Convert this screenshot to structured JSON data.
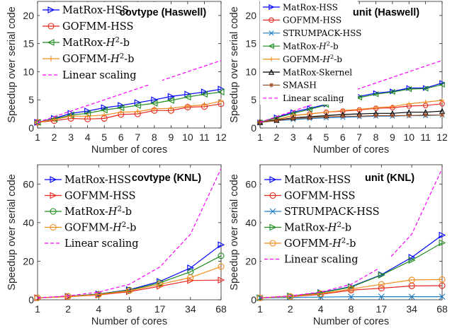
{
  "chart_data": [
    {
      "type": "line",
      "title": "covtype (Haswell)",
      "xlabel": "Number of cores",
      "ylabel": "Speedup over serial code",
      "x": [
        1,
        2,
        3,
        4,
        5,
        6,
        7,
        8,
        9,
        10,
        11,
        12
      ],
      "x_ticks": [
        "1",
        "2",
        "3",
        "4",
        "5",
        "6",
        "7",
        "8",
        "9",
        "10",
        "11",
        "12"
      ],
      "y_ticks": [
        0,
        5,
        10,
        15,
        20
      ],
      "ylim": [
        0,
        22.5
      ],
      "x_scale": "linear",
      "legend_position": "top-left",
      "series": [
        {
          "name": "MatRox-HSS",
          "color": "#0000ff",
          "marker": "triangle-right",
          "values": [
            1,
            1.7,
            2.6,
            3.0,
            3.6,
            4.0,
            4.5,
            5.0,
            5.6,
            6.0,
            6.4,
            6.9
          ]
        },
        {
          "name": "GOFMM-HSS",
          "color": "#e8281e",
          "marker": "circle",
          "values": [
            1,
            1.3,
            1.7,
            1.6,
            1.7,
            2.4,
            2.5,
            3.1,
            3.1,
            3.7,
            3.8,
            4.3
          ]
        },
        {
          "name": "MatRox-H²-b",
          "color": "#1e8c1e",
          "marker": "triangle-left",
          "values": [
            1,
            1.6,
            2.3,
            2.6,
            3.2,
            3.6,
            4.0,
            4.4,
            4.9,
            5.5,
            6.0,
            6.4
          ]
        },
        {
          "name": "GOFMM-H²-b",
          "color": "#f08c1e",
          "marker": "plus",
          "values": [
            1,
            1.5,
            2.1,
            2.1,
            2.3,
            2.8,
            2.9,
            3.4,
            3.5,
            3.9,
            4.1,
            4.8
          ]
        },
        {
          "name": "Linear scaling",
          "color": "#ff00ff",
          "marker": "none",
          "dashed": true,
          "values": [
            1,
            2,
            3,
            4,
            5,
            6,
            7,
            8,
            9,
            10,
            11,
            12
          ]
        }
      ]
    },
    {
      "type": "line",
      "title": "unit (Haswell)",
      "xlabel": "Number of cores",
      "ylabel": "Speedup over serial code",
      "x": [
        1,
        2,
        3,
        4,
        5,
        6,
        7,
        8,
        9,
        10,
        11,
        12
      ],
      "x_ticks": [
        "1",
        "2",
        "3",
        "4",
        "5",
        "6",
        "7",
        "8",
        "9",
        "10",
        "11",
        "12"
      ],
      "y_ticks": [
        0,
        5,
        10,
        15,
        20
      ],
      "ylim": [
        0,
        22.5
      ],
      "x_scale": "linear",
      "legend_position": "top-left",
      "series": [
        {
          "name": "MatRox-HSS",
          "color": "#0000ff",
          "marker": "triangle-right",
          "values": [
            1,
            1.9,
            2.8,
            3.5,
            4.2,
            4.9,
            5.6,
            6.2,
            6.5,
            7.1,
            7.1,
            8.0
          ]
        },
        {
          "name": "GOFMM-HSS",
          "color": "#e8281e",
          "marker": "circle",
          "values": [
            1,
            1.5,
            2.2,
            2.5,
            2.8,
            3.0,
            3.2,
            3.5,
            3.6,
            3.9,
            4.0,
            4.3
          ]
        },
        {
          "name": "STRUMPACK-HSS",
          "color": "#1e7fc8",
          "marker": "x",
          "values": [
            1,
            1.3,
            1.5,
            1.7,
            1.8,
            1.9,
            2.0,
            2.1,
            2.1,
            2.2,
            2.2,
            2.3
          ]
        },
        {
          "name": "MatRox-H²-b",
          "color": "#1e8c1e",
          "marker": "triangle-left",
          "values": [
            1,
            1.8,
            2.6,
            3.3,
            4.1,
            4.7,
            5.4,
            6.0,
            6.4,
            6.9,
            7.0,
            7.7
          ]
        },
        {
          "name": "GOFMM-H²-b",
          "color": "#f08c1e",
          "marker": "plus",
          "values": [
            1,
            1.5,
            2.2,
            2.5,
            2.8,
            3.1,
            3.3,
            3.6,
            3.8,
            4.3,
            4.6,
            4.9
          ]
        },
        {
          "name": "MatRox-Skernel",
          "color": "#000000",
          "marker": "triangle-up",
          "values": [
            1,
            1.4,
            1.8,
            2.0,
            2.2,
            2.4,
            2.5,
            2.6,
            2.6,
            2.8,
            2.8,
            3.0
          ]
        },
        {
          "name": "SMASH",
          "color": "#a0522d",
          "marker": "star",
          "values": [
            1,
            1.3,
            1.7,
            1.8,
            2.0,
            2.1,
            2.1,
            2.2,
            2.2,
            2.2,
            2.3,
            2.3
          ]
        },
        {
          "name": "Linear scaling",
          "color": "#ff00ff",
          "marker": "none",
          "dashed": true,
          "values": [
            1,
            2,
            3,
            4,
            5,
            6,
            7,
            8,
            9,
            10,
            11,
            12
          ]
        }
      ]
    },
    {
      "type": "line",
      "title": "covtype (KNL)",
      "xlabel": "Number of cores",
      "ylabel": "Speedup over serial code",
      "x": [
        1,
        2,
        4,
        8,
        17,
        34,
        68
      ],
      "x_ticks": [
        "1",
        "2",
        "4",
        "8",
        "17",
        "34",
        "68"
      ],
      "y_ticks": [
        0,
        20,
        40,
        60
      ],
      "ylim": [
        0,
        70
      ],
      "x_scale": "categorical",
      "legend_position": "top-left",
      "series": [
        {
          "name": "MatRox-HSS",
          "color": "#0000ff",
          "marker": "triangle-right",
          "values": [
            1,
            1.8,
            3.0,
            5.2,
            9.5,
            16.5,
            28.5
          ]
        },
        {
          "name": "GOFMM-HSS",
          "color": "#e8281e",
          "marker": "triangle-right",
          "values": [
            1,
            1.6,
            2.5,
            4.2,
            7.0,
            10.0,
            10.2
          ]
        },
        {
          "name": "MatRox-H²-b",
          "color": "#1e8c1e",
          "marker": "circle",
          "values": [
            1,
            1.8,
            2.9,
            5.0,
            8.8,
            14.5,
            22.8
          ]
        },
        {
          "name": "GOFMM-H²-b",
          "color": "#f08c1e",
          "marker": "circle",
          "values": [
            1,
            1.7,
            2.7,
            4.7,
            8.0,
            11.5,
            17.2
          ]
        },
        {
          "name": "Linear scaling",
          "color": "#ff00ff",
          "marker": "none",
          "dashed": true,
          "values": [
            1,
            2,
            4,
            8,
            17,
            34,
            68
          ]
        }
      ]
    },
    {
      "type": "line",
      "title": "unit (KNL)",
      "xlabel": "Number of cores",
      "ylabel": "Speedup over serial code",
      "x": [
        1,
        2,
        4,
        8,
        17,
        34,
        68
      ],
      "x_ticks": [
        "1",
        "2",
        "4",
        "8",
        "17",
        "34",
        "68"
      ],
      "y_ticks": [
        0,
        20,
        40,
        60
      ],
      "ylim": [
        0,
        70
      ],
      "x_scale": "categorical",
      "legend_position": "top-left",
      "series": [
        {
          "name": "MatRox-HSS",
          "color": "#0000ff",
          "marker": "triangle-right",
          "values": [
            1,
            1.9,
            3.7,
            6.8,
            13.0,
            22.0,
            33.5
          ]
        },
        {
          "name": "GOFMM-HSS",
          "color": "#e8281e",
          "marker": "circle",
          "values": [
            1,
            1.6,
            2.8,
            5.0,
            6.0,
            7.2,
            7.3
          ]
        },
        {
          "name": "STRUMPACK-HSS",
          "color": "#1e7fc8",
          "marker": "x",
          "values": [
            1,
            1.2,
            1.4,
            1.6,
            1.6,
            1.6,
            1.6
          ]
        },
        {
          "name": "MatRox-H²-b",
          "color": "#1e8c1e",
          "marker": "triangle-right",
          "values": [
            1,
            1.9,
            3.6,
            6.6,
            12.8,
            20.5,
            29.5
          ]
        },
        {
          "name": "GOFMM-H²-b",
          "color": "#f08c1e",
          "marker": "circle",
          "values": [
            1,
            1.7,
            3.2,
            5.6,
            8.0,
            10.3,
            10.5
          ]
        },
        {
          "name": "Linear scaling",
          "color": "#ff00ff",
          "marker": "none",
          "dashed": true,
          "values": [
            1,
            2,
            4,
            8,
            17,
            34,
            68
          ]
        }
      ]
    }
  ]
}
